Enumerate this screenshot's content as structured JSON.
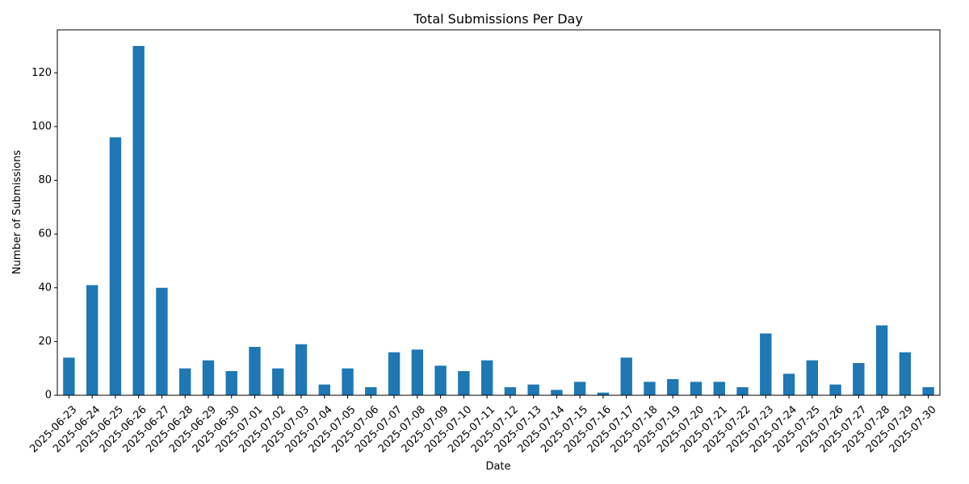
{
  "chart_data": {
    "type": "bar",
    "title": "Total Submissions Per Day",
    "xlabel": "Date",
    "ylabel": "Number of Submissions",
    "ylim": [
      0,
      136
    ],
    "yticks": [
      0,
      20,
      40,
      60,
      80,
      100,
      120
    ],
    "color": "#1f77b4",
    "grid": false,
    "legend": "none",
    "categories": [
      "2025-06-23",
      "2025-06-24",
      "2025-06-25",
      "2025-06-26",
      "2025-06-27",
      "2025-06-28",
      "2025-06-29",
      "2025-06-30",
      "2025-07-01",
      "2025-07-02",
      "2025-07-03",
      "2025-07-04",
      "2025-07-05",
      "2025-07-06",
      "2025-07-07",
      "2025-07-08",
      "2025-07-09",
      "2025-07-10",
      "2025-07-11",
      "2025-07-12",
      "2025-07-13",
      "2025-07-14",
      "2025-07-15",
      "2025-07-16",
      "2025-07-17",
      "2025-07-18",
      "2025-07-19",
      "2025-07-20",
      "2025-07-21",
      "2025-07-22",
      "2025-07-23",
      "2025-07-24",
      "2025-07-25",
      "2025-07-26",
      "2025-07-27",
      "2025-07-28",
      "2025-07-29",
      "2025-07-30"
    ],
    "values": [
      14,
      41,
      96,
      130,
      40,
      10,
      13,
      9,
      18,
      10,
      19,
      4,
      10,
      3,
      16,
      17,
      11,
      9,
      13,
      3,
      4,
      2,
      5,
      1,
      14,
      5,
      6,
      5,
      5,
      3,
      23,
      8,
      13,
      4,
      12,
      26,
      16,
      3
    ]
  }
}
